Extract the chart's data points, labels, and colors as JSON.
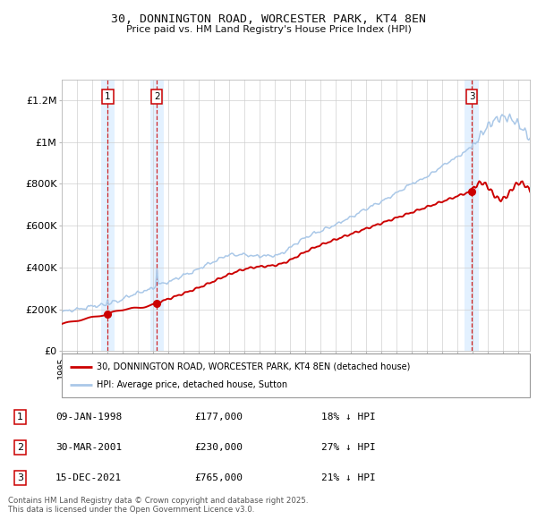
{
  "title_line1": "30, DONNINGTON ROAD, WORCESTER PARK, KT4 8EN",
  "title_line2": "Price paid vs. HM Land Registry's House Price Index (HPI)",
  "ylabel_ticks": [
    "£0",
    "£200K",
    "£400K",
    "£600K",
    "£800K",
    "£1M",
    "£1.2M"
  ],
  "ytick_values": [
    0,
    200000,
    400000,
    600000,
    800000,
    1000000,
    1200000
  ],
  "ylim": [
    0,
    1300000
  ],
  "xlim_start": 1995.0,
  "xlim_end": 2025.8,
  "hpi_color": "#aac8e8",
  "price_color": "#cc0000",
  "vline_color": "#cc0000",
  "vshade_color": "#ddeeff",
  "grid_color": "#cccccc",
  "background_color": "#ffffff",
  "sale_dates_year": [
    1998.03,
    2001.25,
    2021.96
  ],
  "sale_prices": [
    177000,
    230000,
    765000
  ],
  "sale_labels": [
    "1",
    "2",
    "3"
  ],
  "legend_entries": [
    "30, DONNINGTON ROAD, WORCESTER PARK, KT4 8EN (detached house)",
    "HPI: Average price, detached house, Sutton"
  ],
  "table_rows": [
    [
      "1",
      "09-JAN-1998",
      "£177,000",
      "18% ↓ HPI"
    ],
    [
      "2",
      "30-MAR-2001",
      "£230,000",
      "27% ↓ HPI"
    ],
    [
      "3",
      "15-DEC-2021",
      "£765,000",
      "21% ↓ HPI"
    ]
  ],
  "footnote": "Contains HM Land Registry data © Crown copyright and database right 2025.\nThis data is licensed under the Open Government Licence v3.0."
}
